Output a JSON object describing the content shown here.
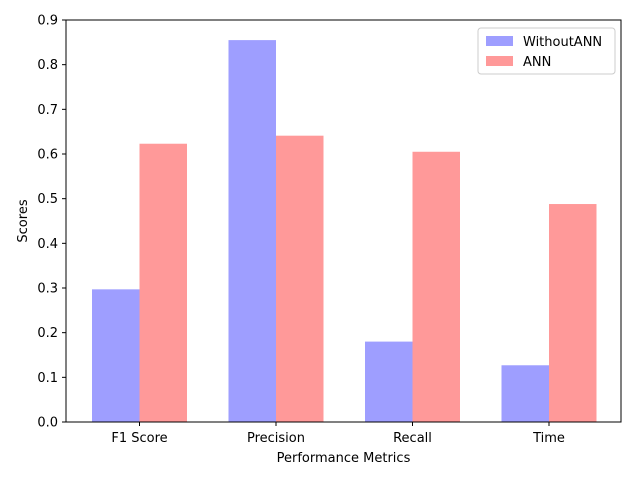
{
  "chart_data": {
    "type": "bar",
    "title": "",
    "xlabel": "Performance Metrics",
    "ylabel": "Scores",
    "categories": [
      "F1 Score",
      "Precision",
      "Recall",
      "Time"
    ],
    "series": [
      {
        "name": "WithoutANN",
        "values": [
          0.297,
          0.855,
          0.18,
          0.127
        ],
        "color": "#9e9eff"
      },
      {
        "name": "ANN",
        "values": [
          0.623,
          0.641,
          0.605,
          0.488
        ],
        "color": "#ff9999"
      }
    ],
    "ylim": [
      0,
      0.9
    ],
    "yticks": [
      "0.0",
      "0.1",
      "0.2",
      "0.3",
      "0.4",
      "0.5",
      "0.6",
      "0.7",
      "0.8",
      "0.9"
    ],
    "grid": false,
    "legend_position": "top-right"
  }
}
